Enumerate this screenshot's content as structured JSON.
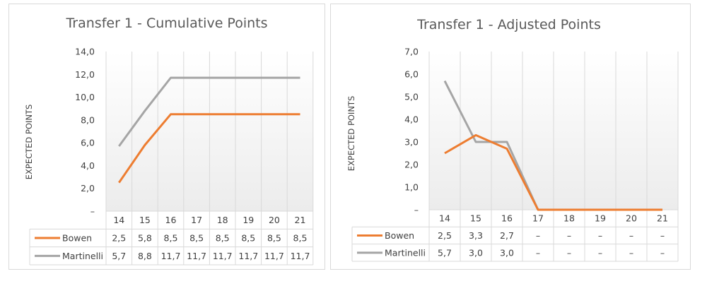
{
  "chart_data": [
    {
      "type": "line",
      "title": "Transfer 1 - Cumulative Points",
      "ylabel": "EXPECTED POINTS",
      "xlabel": "",
      "categories": [
        "14",
        "15",
        "16",
        "17",
        "18",
        "19",
        "20",
        "21"
      ],
      "yticks": [
        "–",
        "2,0",
        "4,0",
        "6,0",
        "8,0",
        "10,0",
        "12,0",
        "14,0"
      ],
      "ylim": [
        0,
        14
      ],
      "grid": true,
      "data_table": true,
      "series": [
        {
          "name": "Bowen",
          "color": "#ED7D31",
          "values": [
            2.5,
            5.8,
            8.5,
            8.5,
            8.5,
            8.5,
            8.5,
            8.5
          ],
          "labels": [
            "2,5",
            "5,8",
            "8,5",
            "8,5",
            "8,5",
            "8,5",
            "8,5",
            "8,5"
          ]
        },
        {
          "name": "Martinelli",
          "color": "#A5A5A5",
          "values": [
            5.7,
            8.8,
            11.7,
            11.7,
            11.7,
            11.7,
            11.7,
            11.7
          ],
          "labels": [
            "5,7",
            "8,8",
            "11,7",
            "11,7",
            "11,7",
            "11,7",
            "11,7",
            "11,7"
          ]
        }
      ]
    },
    {
      "type": "line",
      "title": "Transfer 1 - Adjusted Points",
      "ylabel": "EXPECTED POINTS",
      "xlabel": "",
      "categories": [
        "14",
        "15",
        "16",
        "17",
        "18",
        "19",
        "20",
        "21"
      ],
      "yticks": [
        "–",
        "1,0",
        "2,0",
        "3,0",
        "4,0",
        "5,0",
        "6,0",
        "7,0"
      ],
      "ylim": [
        0,
        7
      ],
      "grid": true,
      "data_table": true,
      "series": [
        {
          "name": "Bowen",
          "color": "#ED7D31",
          "values": [
            2.5,
            3.3,
            2.7,
            0,
            0,
            0,
            0,
            0
          ],
          "labels": [
            "2,5",
            "3,3",
            "2,7",
            "–",
            "–",
            "–",
            "–",
            "–"
          ]
        },
        {
          "name": "Martinelli",
          "color": "#A5A5A5",
          "values": [
            5.7,
            3.0,
            3.0,
            0,
            0,
            0,
            0,
            0
          ],
          "labels": [
            "5,7",
            "3,0",
            "3,0",
            "–",
            "–",
            "–",
            "–",
            "–"
          ]
        }
      ]
    }
  ]
}
